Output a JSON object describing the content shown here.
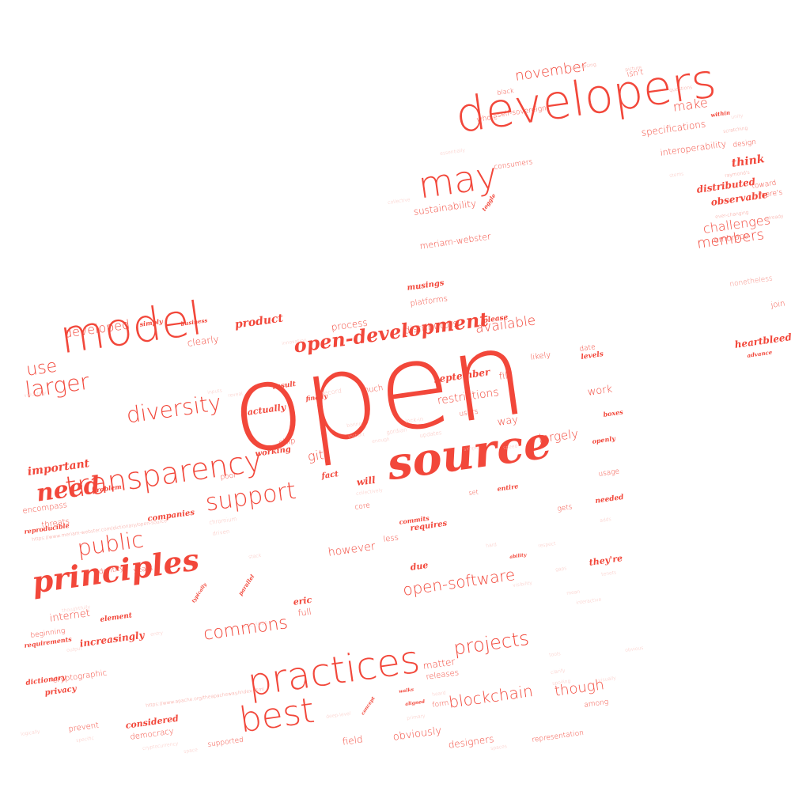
{
  "colors": {
    "primary": "#f2473a",
    "secondary": "#f58a80",
    "faint": "#f9b9b3"
  },
  "words": [
    {
      "text": "open"
    },
    {
      "text": "source"
    },
    {
      "text": "developers"
    },
    {
      "text": "model"
    },
    {
      "text": "may"
    },
    {
      "text": "transparency"
    },
    {
      "text": "principles"
    },
    {
      "text": "practices"
    },
    {
      "text": "best"
    },
    {
      "text": "open-development"
    },
    {
      "text": "support"
    },
    {
      "text": "diversity"
    },
    {
      "text": "larger"
    },
    {
      "text": "use"
    },
    {
      "text": "need"
    },
    {
      "text": "public"
    },
    {
      "text": "blockchain"
    },
    {
      "text": "projects"
    },
    {
      "text": "commons"
    },
    {
      "text": "open-software"
    },
    {
      "text": "november"
    },
    {
      "text": "members"
    },
    {
      "text": "though"
    },
    {
      "text": "available"
    },
    {
      "text": "challenges"
    },
    {
      "text": "make"
    },
    {
      "text": "developed"
    },
    {
      "text": "important"
    },
    {
      "text": "git"
    },
    {
      "text": "largely"
    },
    {
      "text": "restrictions"
    },
    {
      "text": "work"
    },
    {
      "text": "distributors"
    },
    {
      "text": "clearly"
    },
    {
      "text": "product"
    },
    {
      "text": "process"
    },
    {
      "text": "interoperability"
    },
    {
      "text": "specifications"
    },
    {
      "text": "sustainability"
    },
    {
      "text": "meriam-webster"
    },
    {
      "text": "consumers"
    },
    {
      "text": "think"
    },
    {
      "text": "distributed"
    },
    {
      "text": "observable"
    },
    {
      "text": "heartbleed"
    },
    {
      "text": "nonetheless"
    },
    {
      "text": "join"
    },
    {
      "text": "embrace"
    },
    {
      "text": "toward"
    },
    {
      "text": "there's"
    },
    {
      "text": "design"
    },
    {
      "text": "isn't"
    },
    {
      "text": "whole"
    },
    {
      "text": "self-sovereign"
    },
    {
      "text": "black"
    },
    {
      "text": "platforms"
    },
    {
      "text": "musings"
    },
    {
      "text": "september"
    },
    {
      "text": "please"
    },
    {
      "text": "date"
    },
    {
      "text": "levels"
    },
    {
      "text": "likely"
    },
    {
      "text": "fill"
    },
    {
      "text": "way"
    },
    {
      "text": "users"
    },
    {
      "text": "actually"
    },
    {
      "text": "working"
    },
    {
      "text": "chip"
    },
    {
      "text": "fact"
    },
    {
      "text": "will"
    },
    {
      "text": "much"
    },
    {
      "text": "result"
    },
    {
      "text": "however"
    },
    {
      "text": "less"
    },
    {
      "text": "requires"
    },
    {
      "text": "due"
    },
    {
      "text": "they're"
    },
    {
      "text": "internet"
    },
    {
      "text": "beginning"
    },
    {
      "text": "requirements"
    },
    {
      "text": "increasingly"
    },
    {
      "text": "element"
    },
    {
      "text": "dictionary"
    },
    {
      "text": "cryptographic"
    },
    {
      "text": "privacy"
    },
    {
      "text": "prevent"
    },
    {
      "text": "considered"
    },
    {
      "text": "democracy"
    },
    {
      "text": "supported"
    },
    {
      "text": "field"
    },
    {
      "text": "obviously"
    },
    {
      "text": "designers"
    },
    {
      "text": "matter"
    },
    {
      "text": "releases"
    },
    {
      "text": "form"
    },
    {
      "text": "among"
    },
    {
      "text": "representation"
    },
    {
      "text": "encompass"
    },
    {
      "text": "threats"
    },
    {
      "text": "reproducible"
    },
    {
      "text": "companies"
    },
    {
      "text": "identity"
    },
    {
      "text": "years"
    },
    {
      "text": "eric"
    },
    {
      "text": "full"
    },
    {
      "text": "usage"
    },
    {
      "text": "set"
    },
    {
      "text": "gets"
    },
    {
      "text": "core"
    },
    {
      "text": "poor"
    },
    {
      "text": "needed"
    },
    {
      "text": "toggle"
    },
    {
      "text": "simply"
    },
    {
      "text": "business"
    },
    {
      "text": "problem"
    },
    {
      "text": "https://www.meriam-webster.com/dictionary/open-source"
    },
    {
      "text": "https://www.apache.org/theapacheway/index.html"
    },
    {
      "text": "entire"
    },
    {
      "text": "boxes"
    },
    {
      "text": "openly"
    },
    {
      "text": "parallel"
    },
    {
      "text": "previous"
    },
    {
      "text": "commits"
    },
    {
      "text": "finally"
    },
    {
      "text": "collective"
    },
    {
      "text": "lock-in"
    },
    {
      "text": "gordian"
    },
    {
      "text": "record"
    },
    {
      "text": "updates"
    },
    {
      "text": "within"
    },
    {
      "text": "questions"
    },
    {
      "text": "fundraising"
    },
    {
      "text": "picture"
    },
    {
      "text": "raymond's"
    },
    {
      "text": "scratching"
    },
    {
      "text": "ever-changing"
    },
    {
      "text": "already"
    },
    {
      "text": "advance"
    },
    {
      "text": "chromium"
    },
    {
      "text": "driven"
    },
    {
      "text": "stack"
    },
    {
      "text": "thoughtfully"
    },
    {
      "text": "output"
    },
    {
      "text": "entry"
    },
    {
      "text": "typically"
    },
    {
      "text": "ability"
    },
    {
      "text": "hard"
    },
    {
      "text": "gaps"
    },
    {
      "text": "visibility"
    },
    {
      "text": "tools"
    },
    {
      "text": "clarify"
    },
    {
      "text": "spoiling"
    },
    {
      "text": "primary"
    },
    {
      "text": "aligned"
    },
    {
      "text": "heard"
    },
    {
      "text": "walks"
    },
    {
      "text": "concept"
    },
    {
      "text": "deep-level"
    },
    {
      "text": "space"
    },
    {
      "text": "cryptocurrency"
    },
    {
      "text": "logically"
    },
    {
      "text": "specific"
    },
    {
      "text": "unity"
    },
    {
      "text": "innovation"
    },
    {
      "text": "inputs"
    },
    {
      "text": "reveal"
    },
    {
      "text": "voluntary"
    },
    {
      "text": "essentially"
    },
    {
      "text": "tenets"
    },
    {
      "text": "adds"
    },
    {
      "text": "boring"
    },
    {
      "text": "instant"
    },
    {
      "text": "enough"
    },
    {
      "text": "collectively"
    },
    {
      "text": "simple"
    },
    {
      "text": "speed"
    },
    {
      "text": "respect"
    },
    {
      "text": "mean"
    },
    {
      "text": "interactive"
    },
    {
      "text": "obvious"
    },
    {
      "text": "spaces"
    },
    {
      "text": "visually"
    },
    {
      "text": "stems"
    }
  ]
}
